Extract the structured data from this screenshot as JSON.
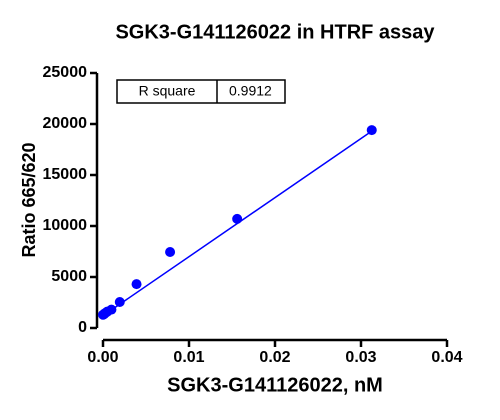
{
  "chart_data": {
    "type": "scatter",
    "title": "SGK3-G141126022 in HTRF assay",
    "x_label": "SGK3-G141126022, nM",
    "y_label": "Ratio 665/620",
    "x": [
      0,
      0.00012,
      0.00024,
      0.00049,
      0.00098,
      0.00195,
      0.0039,
      0.0078,
      0.0156,
      0.03125
    ],
    "values": [
      1300,
      1350,
      1450,
      1600,
      1800,
      2550,
      4300,
      7450,
      10700,
      19400
    ],
    "color": "#0000ff",
    "fit_line": {
      "x": [
        0,
        0.03125
      ],
      "values": [
        1200,
        19300
      ],
      "color": "#0000ff"
    },
    "xlim": [
      0,
      0.04
    ],
    "xticks": [
      {
        "value": 0,
        "label": "0.00"
      },
      0.01,
      0.02,
      0.03,
      0.04
    ],
    "ylim": [
      0,
      25000
    ],
    "yticks": [
      0,
      5000,
      10000,
      15000,
      20000,
      25000
    ],
    "table": {
      "header": "R square",
      "value": "0.9912"
    }
  }
}
